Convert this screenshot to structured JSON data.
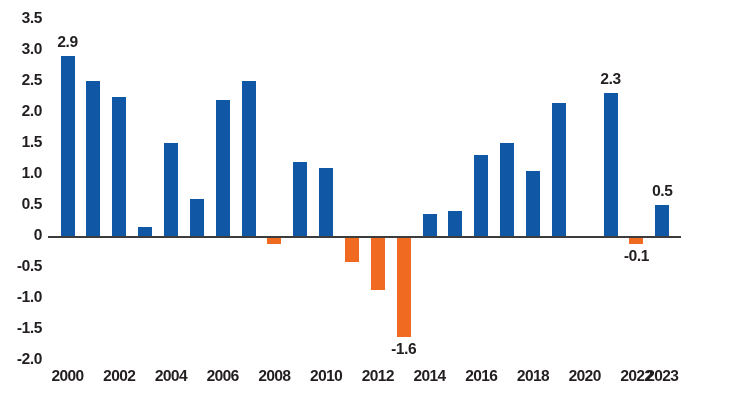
{
  "chart_data": {
    "type": "bar",
    "title": "",
    "xlabel": "",
    "ylabel": "",
    "categories": [
      2000,
      2001,
      2002,
      2003,
      2004,
      2005,
      2006,
      2007,
      2008,
      2009,
      2010,
      2011,
      2012,
      2013,
      2014,
      2015,
      2016,
      2017,
      2018,
      2019,
      2020,
      2021,
      2022,
      2023
    ],
    "values": [
      2.9,
      2.5,
      2.25,
      0.15,
      1.5,
      0.6,
      2.2,
      2.5,
      -0.1,
      1.2,
      1.1,
      -0.4,
      -0.85,
      -1.6,
      0.35,
      0.4,
      1.3,
      1.5,
      1.05,
      2.15,
      0,
      2.3,
      -0.1,
      0.5
    ],
    "bar_labels": {
      "2000": "2.9",
      "2013": "-1.6",
      "2021": "2.3",
      "2022": "-0.1",
      "2023": "0.5"
    },
    "x_tick_labels": [
      "2000",
      "2002",
      "2004",
      "2006",
      "2008",
      "2010",
      "2012",
      "2014",
      "2016",
      "2018",
      "2020",
      "2022",
      "2023"
    ],
    "y_tick_labels": [
      "3.5",
      "3.0",
      "2.5",
      "2.0",
      "1.5",
      "1.0",
      "0.5",
      "0",
      "-0.5",
      "-1.0",
      "-1.5",
      "-2.0"
    ],
    "ylim": [
      -2.0,
      3.5
    ],
    "grid": false,
    "legend": "none",
    "colors": {
      "positive_bar": "#1057A6",
      "negative_bar": "#F06A22",
      "axis_line": "#3c3c3c",
      "text": "#231f20"
    }
  }
}
